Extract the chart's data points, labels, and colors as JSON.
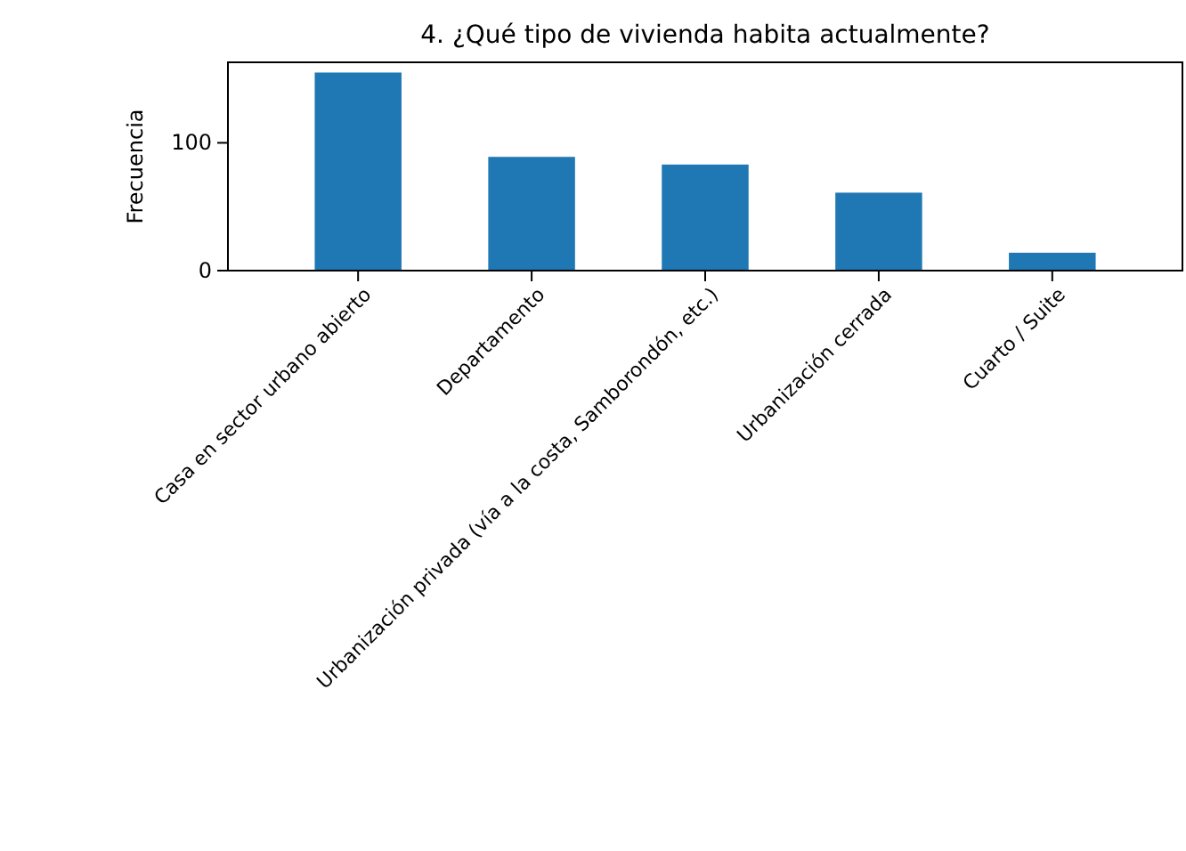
{
  "chart_data": {
    "type": "bar",
    "title": "4. ¿Qué tipo de vivienda habita actualmente?",
    "ylabel": "Frecuencia",
    "categories": [
      "Casa en sector urbano abierto",
      "Departamento",
      "Urbanización privada (vía a la costa, Samborondón, etc.)",
      "Urbanización cerrada",
      "Cuarto / Suite"
    ],
    "values": [
      155,
      89,
      83,
      61,
      14
    ],
    "color": "#1f77b4",
    "ylim": [
      0,
      163
    ],
    "yticks": [
      0,
      100
    ],
    "grid": false
  }
}
